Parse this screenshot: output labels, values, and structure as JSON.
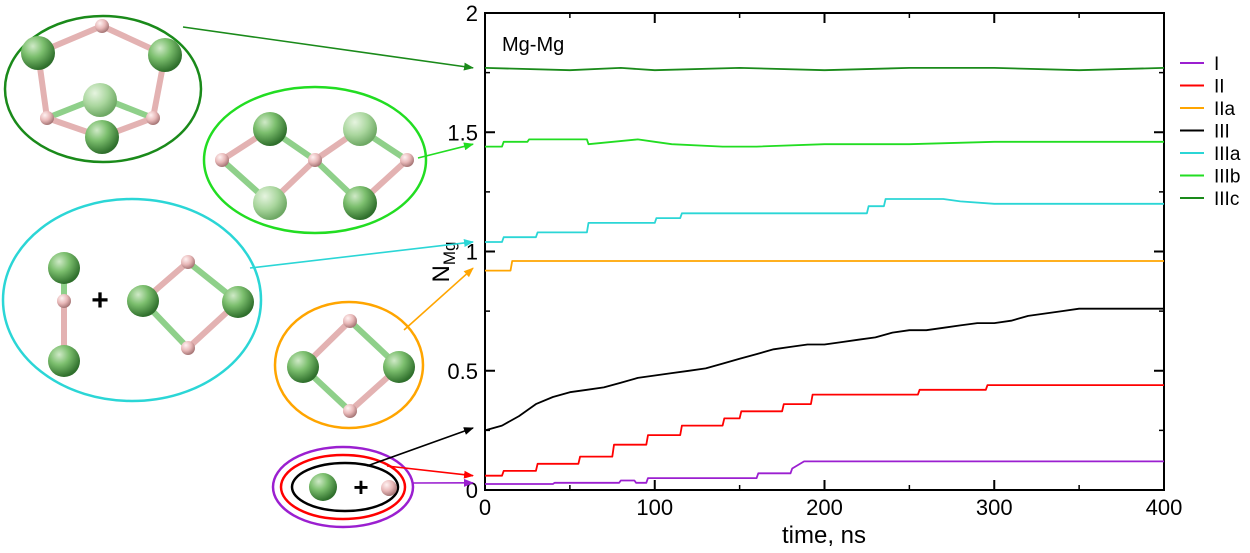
{
  "chart_data": {
    "type": "line",
    "annotation": "Mg-Mg",
    "xlabel": "time, ns",
    "ylabel_main": "N",
    "ylabel_sub": "Mg",
    "xlim": [
      0,
      400
    ],
    "ylim": [
      0,
      2
    ],
    "x_ticks": [
      0,
      100,
      200,
      300,
      400
    ],
    "x_tick_labels": [
      "0",
      "100",
      "200",
      "300",
      "400"
    ],
    "y_ticks": [
      0,
      0.5,
      1,
      1.5,
      2
    ],
    "y_tick_labels": [
      "0",
      "0.5",
      "1",
      "1.5",
      "2"
    ],
    "grid": false,
    "legend_position": "right-outside",
    "series": [
      {
        "name": "I",
        "color": "#9b1fd0",
        "x": [
          0,
          40,
          41,
          79,
          80,
          88,
          89,
          95,
          96,
          150,
          160,
          161,
          180,
          181,
          188,
          400
        ],
        "y": [
          0.025,
          0.025,
          0.03,
          0.03,
          0.04,
          0.04,
          0.03,
          0.03,
          0.05,
          0.05,
          0.05,
          0.07,
          0.07,
          0.09,
          0.12,
          0.12
        ]
      },
      {
        "name": "II",
        "color": "#ff0000",
        "x": [
          0,
          10,
          11,
          30,
          31,
          55,
          56,
          75,
          76,
          95,
          96,
          115,
          116,
          140,
          141,
          150,
          151,
          175,
          176,
          192,
          193,
          255,
          256,
          295,
          296,
          400
        ],
        "y": [
          0.06,
          0.06,
          0.08,
          0.08,
          0.11,
          0.11,
          0.14,
          0.14,
          0.19,
          0.19,
          0.23,
          0.23,
          0.27,
          0.27,
          0.3,
          0.3,
          0.33,
          0.33,
          0.36,
          0.36,
          0.4,
          0.4,
          0.42,
          0.42,
          0.44,
          0.44
        ]
      },
      {
        "name": "IIa",
        "color": "#ffa500",
        "x": [
          0,
          15,
          16,
          320,
          330,
          400
        ],
        "y": [
          0.92,
          0.92,
          0.96,
          0.96,
          0.96,
          0.96
        ]
      },
      {
        "name": "III",
        "color": "#000000",
        "x": [
          0,
          10,
          20,
          30,
          40,
          50,
          60,
          70,
          80,
          90,
          100,
          110,
          120,
          130,
          140,
          150,
          160,
          170,
          180,
          190,
          200,
          210,
          220,
          230,
          240,
          250,
          260,
          270,
          280,
          290,
          300,
          310,
          320,
          330,
          340,
          350,
          360,
          370,
          380,
          390,
          400
        ],
        "y": [
          0.25,
          0.27,
          0.31,
          0.36,
          0.39,
          0.41,
          0.42,
          0.43,
          0.45,
          0.47,
          0.48,
          0.49,
          0.5,
          0.51,
          0.53,
          0.55,
          0.57,
          0.59,
          0.6,
          0.61,
          0.61,
          0.62,
          0.63,
          0.64,
          0.66,
          0.67,
          0.67,
          0.68,
          0.69,
          0.7,
          0.7,
          0.71,
          0.73,
          0.74,
          0.75,
          0.76,
          0.76,
          0.76,
          0.76,
          0.76,
          0.76
        ]
      },
      {
        "name": "IIIa",
        "color": "#2bd6d6",
        "x": [
          0,
          10,
          11,
          30,
          31,
          60,
          61,
          100,
          101,
          115,
          116,
          225,
          226,
          235,
          236,
          270,
          280,
          300,
          320,
          321,
          400
        ],
        "y": [
          1.04,
          1.04,
          1.06,
          1.06,
          1.08,
          1.08,
          1.12,
          1.12,
          1.14,
          1.14,
          1.16,
          1.16,
          1.19,
          1.19,
          1.22,
          1.22,
          1.21,
          1.2,
          1.2,
          1.2,
          1.2
        ]
      },
      {
        "name": "IIIb",
        "color": "#22dd22",
        "x": [
          0,
          10,
          11,
          25,
          26,
          60,
          61,
          90,
          100,
          110,
          140,
          160,
          200,
          250,
          300,
          350,
          400
        ],
        "y": [
          1.44,
          1.44,
          1.46,
          1.46,
          1.47,
          1.47,
          1.45,
          1.47,
          1.46,
          1.45,
          1.44,
          1.44,
          1.45,
          1.45,
          1.46,
          1.46,
          1.46
        ]
      },
      {
        "name": "IIIc",
        "color": "#1a8a1a",
        "x": [
          0,
          50,
          80,
          100,
          150,
          200,
          250,
          300,
          350,
          400
        ],
        "y": [
          1.77,
          1.76,
          1.77,
          1.76,
          1.77,
          1.76,
          1.77,
          1.77,
          1.76,
          1.77
        ]
      }
    ],
    "inset_pointer_targets": [
      {
        "series": "IIIc",
        "x": 0,
        "y": 1.77
      },
      {
        "series": "IIIb",
        "x": 0,
        "y": 1.45
      },
      {
        "series": "IIIa",
        "x": 0,
        "y": 1.04
      },
      {
        "series": "IIa",
        "x": 0,
        "y": 0.93
      },
      {
        "series": "III",
        "x": 0,
        "y": 0.26
      },
      {
        "series": "II",
        "x": 0,
        "y": 0.06
      },
      {
        "series": "I",
        "x": 0,
        "y": 0.03
      }
    ]
  },
  "insets": {
    "plus_sign": "+",
    "mg_color": "#7cbf6e",
    "mg_dark": "#3f8a3c",
    "atom_pink": "#f0c4c4",
    "bond_green": "#8fd08a",
    "bond_pink": "#e3b2b2"
  }
}
